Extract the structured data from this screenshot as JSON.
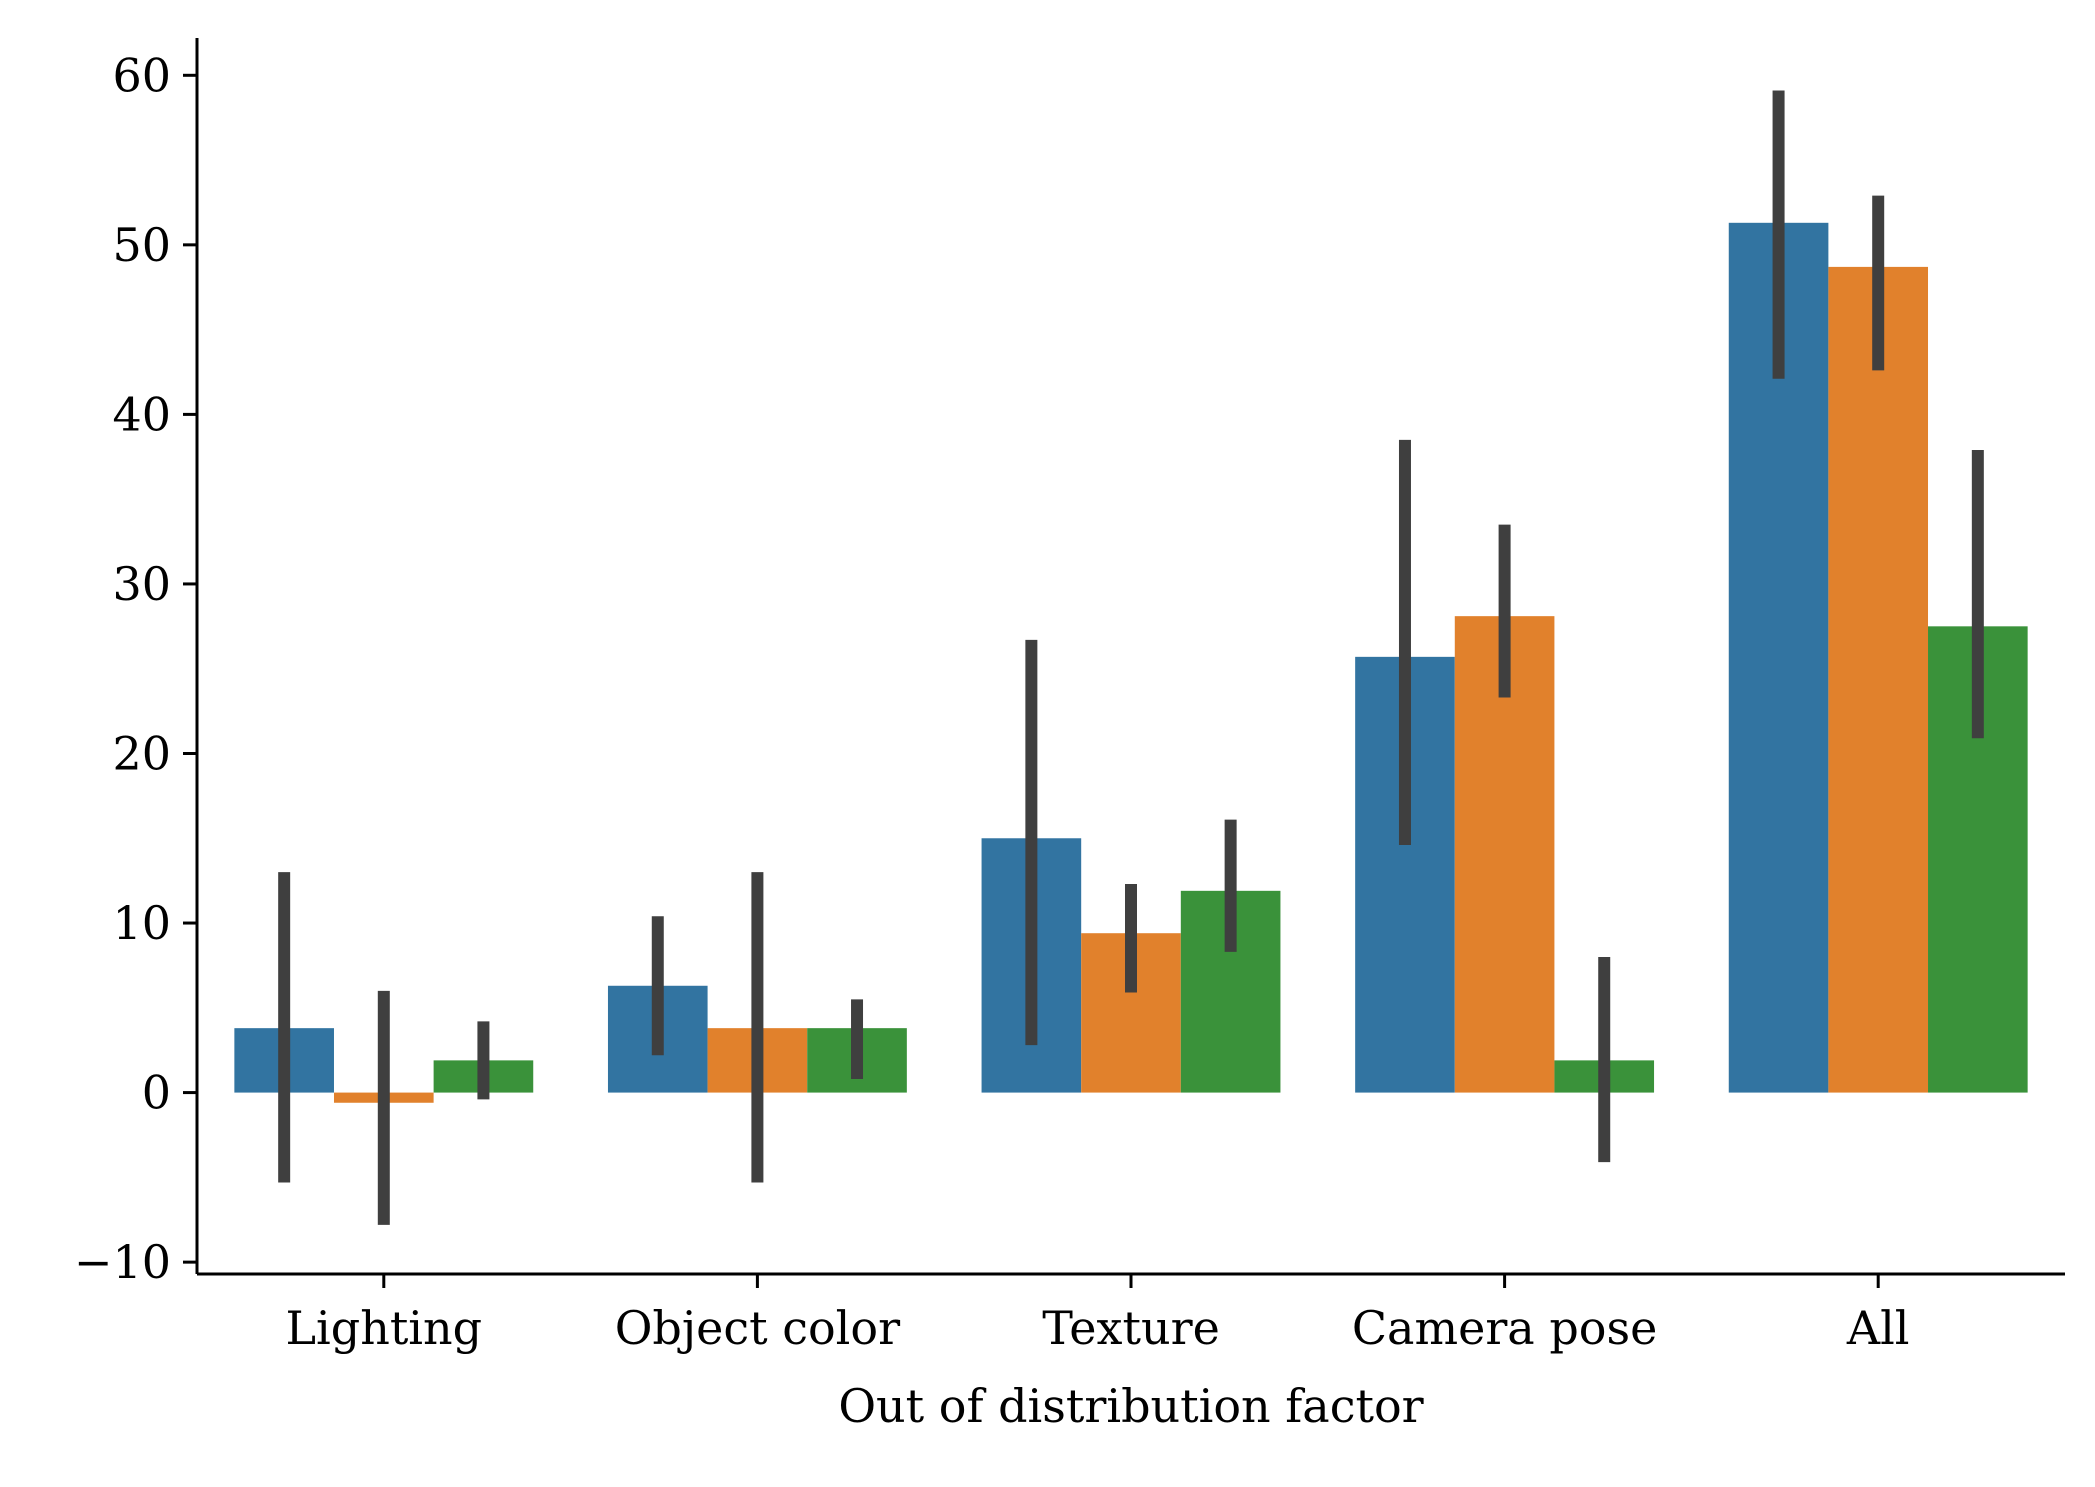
{
  "chart_data": {
    "type": "bar",
    "title": "",
    "xlabel": "Out of distribution factor",
    "ylabel": "",
    "categories": [
      "Lighting",
      "Object color",
      "Texture",
      "Camera pose",
      "All"
    ],
    "series": [
      {
        "color": "#3274a1",
        "values": [
          3.8,
          6.3,
          15.0,
          25.7,
          51.3
        ],
        "error_low": [
          -5.3,
          2.2,
          2.8,
          14.6,
          42.1
        ],
        "error_high": [
          13.0,
          10.4,
          26.7,
          38.5,
          59.1
        ]
      },
      {
        "color": "#e1812c",
        "values": [
          -0.6,
          3.8,
          9.4,
          28.1,
          48.7
        ],
        "error_low": [
          -7.8,
          -5.3,
          5.9,
          23.3,
          42.6
        ],
        "error_high": [
          6.0,
          13.0,
          12.3,
          33.5,
          52.9
        ]
      },
      {
        "color": "#3a923a",
        "values": [
          1.9,
          3.8,
          11.9,
          1.9,
          27.5
        ],
        "error_low": [
          -0.4,
          0.8,
          8.3,
          -4.1,
          20.9
        ],
        "error_high": [
          4.2,
          5.5,
          16.1,
          8.0,
          37.9
        ]
      }
    ],
    "yticks": [
      "−10",
      "0",
      "10",
      "20",
      "30",
      "40",
      "50",
      "60"
    ],
    "ylim": [
      -10.7,
      62.2
    ],
    "grid": false,
    "legend": "none",
    "error_bar_color": "#3f3f3f"
  }
}
